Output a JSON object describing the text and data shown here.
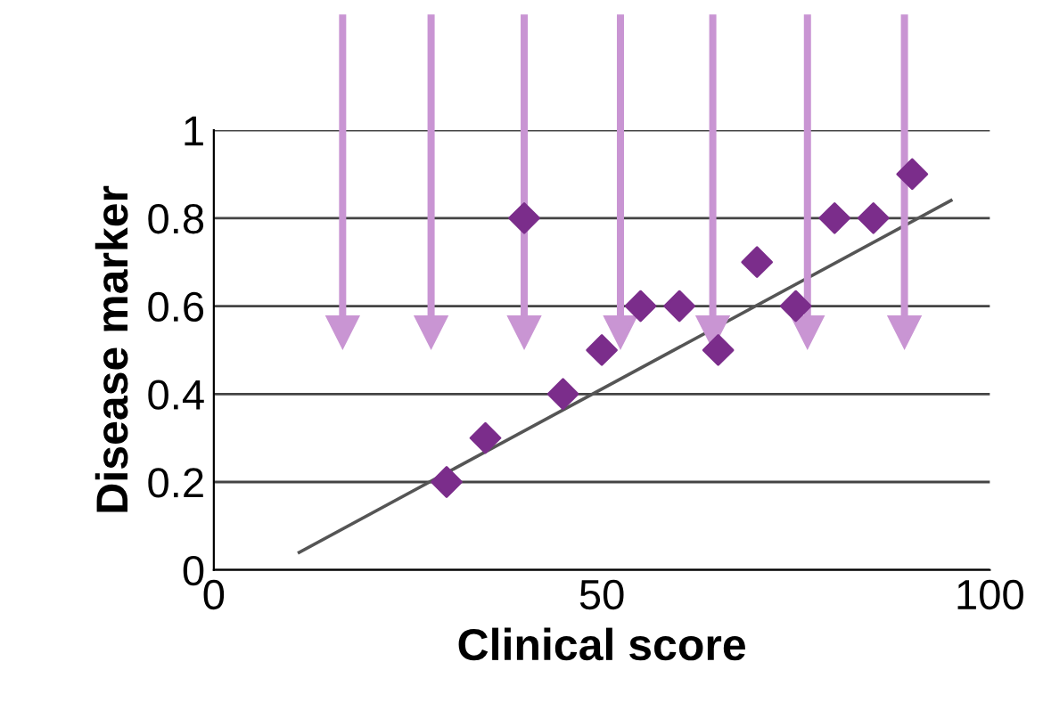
{
  "chart_data": {
    "type": "scatter",
    "xlabel": "Clinical score",
    "ylabel": "Disease marker",
    "xlim": [
      0,
      100
    ],
    "xticks": [
      0,
      50,
      100
    ],
    "ylim": [
      0,
      1
    ],
    "yticks": [
      0,
      0.2,
      0.4,
      0.6,
      0.8,
      1
    ],
    "grid": "y",
    "series": [
      {
        "color": "#7b2d8b",
        "marker": "diamond",
        "x": [
          30,
          35,
          40,
          45,
          50,
          55,
          60,
          65,
          70,
          75,
          80,
          85,
          90
        ],
        "values": [
          0.2,
          0.3,
          0.8,
          0.4,
          0.5,
          0.6,
          0.6,
          0.5,
          0.7,
          0.6,
          0.8,
          0.8,
          0.9
        ]
      },
      {
        "type": "line",
        "color": "#555555",
        "marker": "none",
        "line_style": "solid",
        "x": [
          11,
          95
        ],
        "values": [
          0.04,
          0.84
        ]
      }
    ]
  }
}
